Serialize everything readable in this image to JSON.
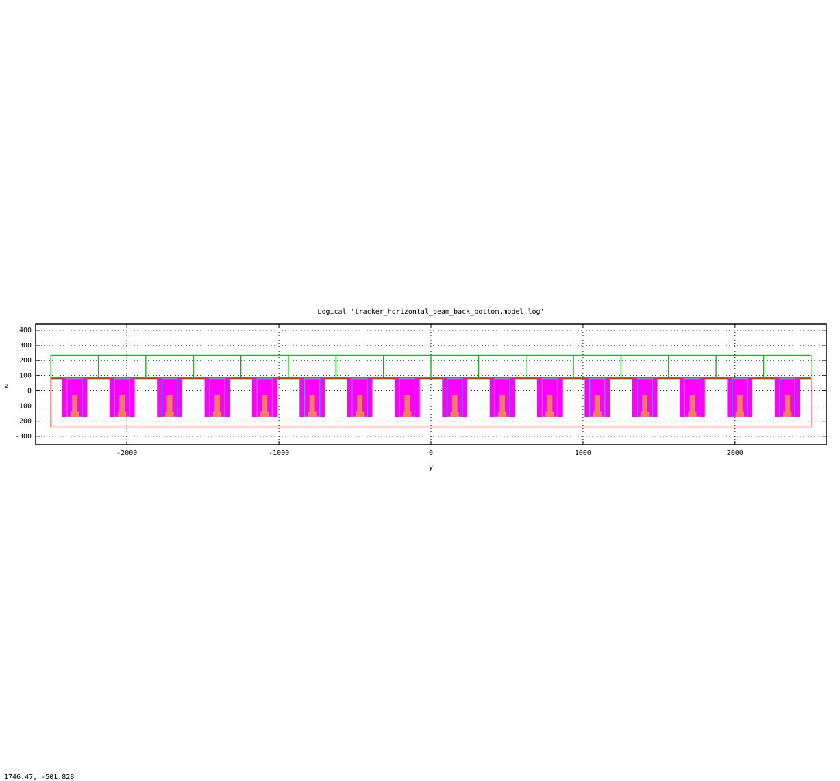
{
  "chart_data": {
    "type": "rects",
    "title": "Logical 'tracker_horizontal_beam_back_bottom.model.log'",
    "x_label": "y",
    "y_label": "z",
    "xlim": [
      -2600,
      2600
    ],
    "ylim": [
      -355,
      440
    ],
    "xticks": [
      -2000,
      -1000,
      0,
      1000,
      2000
    ],
    "yticks": [
      -300,
      -200,
      -100,
      0,
      100,
      200,
      300,
      400
    ],
    "grid": true,
    "series": [
      {
        "color": "#ff0000",
        "fill": false,
        "rects": [
          [
            -2500,
            2500,
            -240,
            80
          ]
        ]
      },
      {
        "color": "#00c000",
        "fill": false,
        "rects": [
          [
            -2500,
            -2187.5,
            85,
            235
          ],
          [
            -2187.5,
            -1875,
            85,
            235
          ],
          [
            -1875,
            -1562.5,
            85,
            235
          ],
          [
            -1562.5,
            -1250,
            85,
            235
          ],
          [
            -1250,
            -937.5,
            85,
            235
          ],
          [
            -937.5,
            -625,
            85,
            235
          ],
          [
            -625,
            -312.5,
            85,
            235
          ],
          [
            -312.5,
            0,
            85,
            235
          ],
          [
            0,
            312.5,
            85,
            235
          ],
          [
            312.5,
            625,
            85,
            235
          ],
          [
            625,
            937.5,
            85,
            235
          ],
          [
            937.5,
            1250,
            85,
            235
          ],
          [
            1250,
            1562.5,
            85,
            235
          ],
          [
            1562.5,
            1875,
            85,
            235
          ],
          [
            1875,
            2187.5,
            85,
            235
          ],
          [
            2187.5,
            2500,
            85,
            235
          ]
        ]
      },
      {
        "color": "#ff00ff",
        "fill": true,
        "rects": [
          [
            -2423.75,
            -2263.75,
            -170,
            80
          ],
          [
            -2111.25,
            -1951.25,
            -170,
            80
          ],
          [
            -1798.75,
            -1638.75,
            -170,
            80
          ],
          [
            -1486.25,
            -1326.25,
            -170,
            80
          ],
          [
            -1173.75,
            -1013.75,
            -170,
            80
          ],
          [
            -861.25,
            -701.25,
            -170,
            80
          ],
          [
            -548.75,
            -388.75,
            -170,
            80
          ],
          [
            -236.25,
            -76.25,
            -170,
            80
          ],
          [
            76.25,
            236.25,
            -170,
            80
          ],
          [
            388.75,
            548.75,
            -170,
            80
          ],
          [
            701.25,
            861.25,
            -170,
            80
          ],
          [
            1013.75,
            1173.75,
            -170,
            80
          ],
          [
            1326.25,
            1486.25,
            -170,
            80
          ],
          [
            1638.75,
            1798.75,
            -170,
            80
          ],
          [
            1951.25,
            2111.25,
            -170,
            80
          ],
          [
            2263.75,
            2423.75,
            -170,
            80
          ]
        ]
      },
      {
        "color": "#5aa0f0",
        "fill": false,
        "rects": [
          [
            -2393.75,
            -2293.75,
            -170,
            80
          ],
          [
            -2081.25,
            -1981.25,
            -170,
            80
          ],
          [
            -1768.75,
            -1668.75,
            -170,
            80
          ],
          [
            -1456.25,
            -1356.25,
            -170,
            80
          ],
          [
            -1143.75,
            -1043.75,
            -170,
            80
          ],
          [
            -831.25,
            -731.25,
            -170,
            80
          ],
          [
            -518.75,
            -418.75,
            -170,
            80
          ],
          [
            -206.25,
            -106.25,
            -170,
            80
          ],
          [
            106.25,
            206.25,
            -170,
            80
          ],
          [
            418.75,
            518.75,
            -170,
            80
          ],
          [
            731.25,
            831.25,
            -170,
            80
          ],
          [
            1043.75,
            1143.75,
            -170,
            80
          ],
          [
            1356.25,
            1456.25,
            -170,
            80
          ],
          [
            1668.75,
            1768.75,
            -170,
            80
          ],
          [
            1981.25,
            2081.25,
            -170,
            80
          ],
          [
            2293.75,
            2393.75,
            -170,
            80
          ]
        ]
      },
      {
        "color": "#f08060",
        "fill": true,
        "rects": [
          [
            -2358.75,
            -2328.75,
            -150,
            -30
          ],
          [
            -2046.25,
            -2016.25,
            -150,
            -30
          ],
          [
            -1733.75,
            -1703.75,
            -150,
            -30
          ],
          [
            -1421.25,
            -1391.25,
            -150,
            -30
          ],
          [
            -1108.75,
            -1078.75,
            -150,
            -30
          ],
          [
            -796.25,
            -766.25,
            -150,
            -30
          ],
          [
            -483.75,
            -453.75,
            -150,
            -30
          ],
          [
            -171.25,
            -141.25,
            -150,
            -30
          ],
          [
            141.25,
            171.25,
            -150,
            -30
          ],
          [
            453.75,
            483.75,
            -150,
            -30
          ],
          [
            766.25,
            796.25,
            -150,
            -30
          ],
          [
            1078.75,
            1108.75,
            -150,
            -30
          ],
          [
            1391.25,
            1421.25,
            -150,
            -30
          ],
          [
            1703.75,
            1733.75,
            -150,
            -30
          ],
          [
            2016.25,
            2046.25,
            -150,
            -30
          ],
          [
            2328.75,
            2358.75,
            -150,
            -30
          ]
        ]
      },
      {
        "color": "#f08060",
        "fill": true,
        "rects": [
          [
            -2368.75,
            -2318.75,
            -170,
            -140
          ],
          [
            -2056.25,
            -2006.25,
            -170,
            -140
          ],
          [
            -1743.75,
            -1693.75,
            -170,
            -140
          ],
          [
            -1431.25,
            -1381.25,
            -170,
            -140
          ],
          [
            -1118.75,
            -1068.75,
            -170,
            -140
          ],
          [
            -806.25,
            -756.25,
            -170,
            -140
          ],
          [
            -493.75,
            -443.75,
            -170,
            -140
          ],
          [
            -181.25,
            -131.25,
            -170,
            -140
          ],
          [
            131.25,
            181.25,
            -170,
            -140
          ],
          [
            443.75,
            493.75,
            -170,
            -140
          ],
          [
            756.25,
            806.25,
            -170,
            -140
          ],
          [
            1068.75,
            1118.75,
            -170,
            -140
          ],
          [
            1381.25,
            1431.25,
            -170,
            -140
          ],
          [
            1693.75,
            1743.75,
            -170,
            -140
          ],
          [
            2006.25,
            2056.25,
            -170,
            -140
          ],
          [
            2318.75,
            2368.75,
            -170,
            -140
          ]
        ]
      }
    ],
    "status": "1746.47, -501.828"
  }
}
